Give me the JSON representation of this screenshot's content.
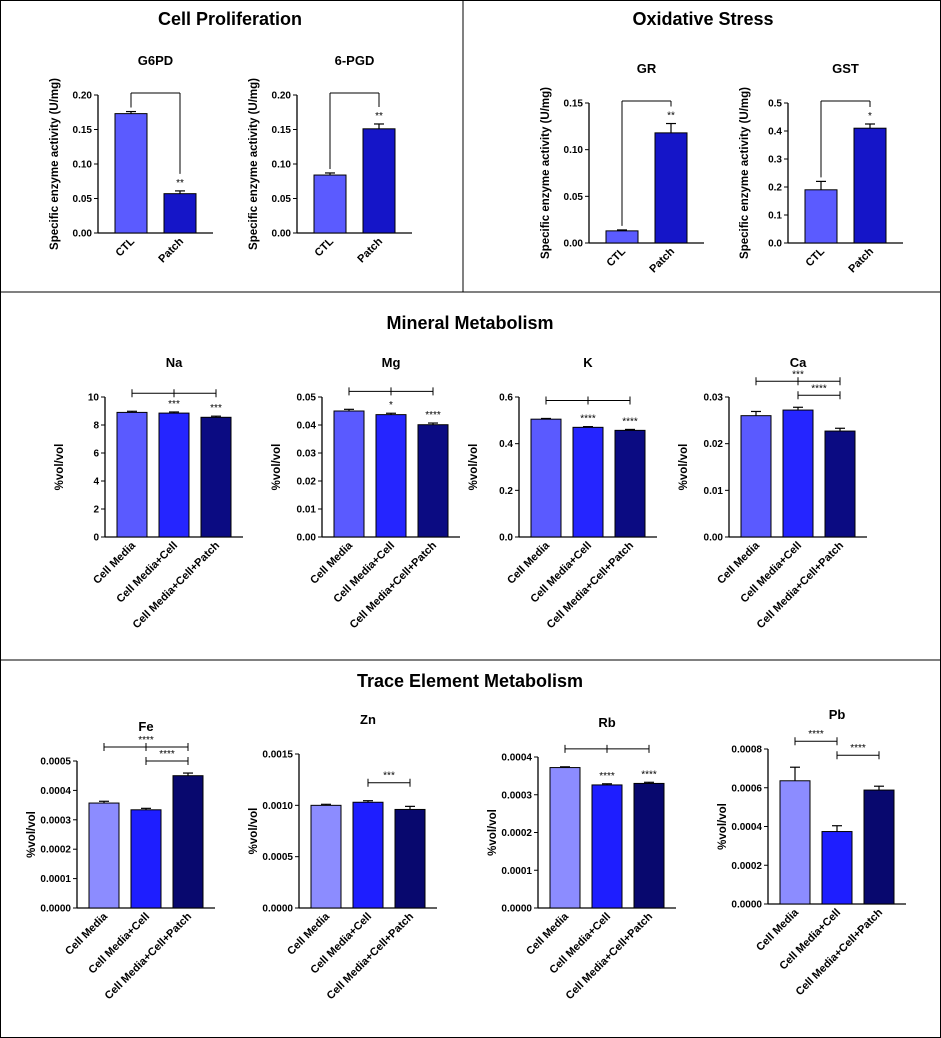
{
  "figure": {
    "sections": [
      {
        "title": "Cell Proliferation"
      },
      {
        "title": "Oxidative Stress"
      },
      {
        "title": "Mineral Metabolism"
      },
      {
        "title": "Trace Element Metabolism"
      }
    ]
  },
  "chart_data": [
    {
      "id": "g6pd",
      "type": "bar",
      "title": "G6PD",
      "ylabel": "Specific enzyme activity (U/mg)",
      "categories": [
        "CTL",
        "Patch"
      ],
      "values": [
        0.173,
        0.057
      ],
      "errors": [
        0.003,
        0.004
      ],
      "colors": [
        "#5b5bff",
        "#1515c8"
      ],
      "ylim": [
        0,
        0.2
      ],
      "ticks": [
        0,
        0.05,
        0.1,
        0.15,
        0.2
      ],
      "tick_labels": [
        "0.00",
        "0.05",
        "0.10",
        "0.15",
        "0.20"
      ],
      "bar_labels": [
        "",
        "**"
      ],
      "brackets": [
        {
          "from": 0,
          "to": 1,
          "label": ""
        }
      ]
    },
    {
      "id": "6pgd",
      "type": "bar",
      "title": "6-PGD",
      "ylabel": "Specific enzyme activity (U/mg)",
      "categories": [
        "CTL",
        "Patch"
      ],
      "values": [
        0.084,
        0.151
      ],
      "errors": [
        0.003,
        0.007
      ],
      "colors": [
        "#5b5bff",
        "#1515c8"
      ],
      "ylim": [
        0,
        0.2
      ],
      "ticks": [
        0,
        0.05,
        0.1,
        0.15,
        0.2
      ],
      "tick_labels": [
        "0.00",
        "0.05",
        "0.10",
        "0.15",
        "0.20"
      ],
      "bar_labels": [
        "",
        "**"
      ],
      "brackets": [
        {
          "from": 0,
          "to": 1,
          "label": ""
        }
      ]
    },
    {
      "id": "gr",
      "type": "bar",
      "title": "GR",
      "ylabel": "Specific enzyme activity (U/mg)",
      "categories": [
        "CTL",
        "Patch"
      ],
      "values": [
        0.013,
        0.118
      ],
      "errors": [
        0.001,
        0.01
      ],
      "colors": [
        "#5b5bff",
        "#1515c8"
      ],
      "ylim": [
        0,
        0.15
      ],
      "ticks": [
        0,
        0.05,
        0.1,
        0.15
      ],
      "tick_labels": [
        "0.00",
        "0.05",
        "0.10",
        "0.15"
      ],
      "bar_labels": [
        "",
        "**"
      ],
      "brackets": [
        {
          "from": 0,
          "to": 1,
          "label": ""
        }
      ]
    },
    {
      "id": "gst",
      "type": "bar",
      "title": "GST",
      "ylabel": "Specific enzyme activity (U/mg)",
      "categories": [
        "CTL",
        "Patch"
      ],
      "values": [
        0.19,
        0.41
      ],
      "errors": [
        0.03,
        0.015
      ],
      "colors": [
        "#5b5bff",
        "#1515c8"
      ],
      "ylim": [
        0,
        0.5
      ],
      "ticks": [
        0,
        0.1,
        0.2,
        0.3,
        0.4,
        0.5
      ],
      "tick_labels": [
        "0.0",
        "0.1",
        "0.2",
        "0.3",
        "0.4",
        "0.5"
      ],
      "bar_labels": [
        "",
        "*"
      ],
      "brackets": [
        {
          "from": 0,
          "to": 1,
          "label": ""
        }
      ]
    },
    {
      "id": "na",
      "type": "bar",
      "title": "Na",
      "ylabel": "%vol/vol",
      "categories": [
        "Cell Media",
        "Cell Media+Cell",
        "Cell Media+Cell+Patch"
      ],
      "values": [
        8.9,
        8.85,
        8.55
      ],
      "errors": [
        0.08,
        0.08,
        0.08
      ],
      "colors": [
        "#5a5aff",
        "#2525ff",
        "#0b0b82"
      ],
      "ylim": [
        0,
        10
      ],
      "ticks": [
        0,
        2,
        4,
        6,
        8,
        10
      ],
      "tick_labels": [
        "0",
        "2",
        "4",
        "6",
        "8",
        "10"
      ],
      "bar_labels": [
        "",
        "***",
        "***"
      ],
      "brackets": [
        {
          "from": 0,
          "to": 2,
          "label": ""
        }
      ]
    },
    {
      "id": "mg",
      "type": "bar",
      "title": "Mg",
      "ylabel": "%vol/vol",
      "categories": [
        "Cell Media",
        "Cell Media+Cell",
        "Cell Media+Cell+Patch"
      ],
      "values": [
        0.045,
        0.0437,
        0.0401
      ],
      "errors": [
        0.0006,
        0.0005,
        0.0006
      ],
      "colors": [
        "#5a5aff",
        "#2525ff",
        "#0b0b82"
      ],
      "ylim": [
        0,
        0.05
      ],
      "ticks": [
        0,
        0.01,
        0.02,
        0.03,
        0.04,
        0.05
      ],
      "tick_labels": [
        "0.00",
        "0.01",
        "0.02",
        "0.03",
        "0.04",
        "0.05"
      ],
      "bar_labels": [
        "",
        "*",
        "****"
      ],
      "brackets": [
        {
          "from": 0,
          "to": 2,
          "label": ""
        }
      ]
    },
    {
      "id": "k",
      "type": "bar",
      "title": "K",
      "ylabel": "%vol/vol",
      "categories": [
        "Cell Media",
        "Cell Media+Cell",
        "Cell Media+Cell+Patch"
      ],
      "values": [
        0.505,
        0.47,
        0.457
      ],
      "errors": [
        0.003,
        0.003,
        0.004
      ],
      "colors": [
        "#5a5aff",
        "#2525ff",
        "#0b0b82"
      ],
      "ylim": [
        0,
        0.6
      ],
      "ticks": [
        0,
        0.2,
        0.4,
        0.6
      ],
      "tick_labels": [
        "0.0",
        "0.2",
        "0.4",
        "0.6"
      ],
      "bar_labels": [
        "",
        "****",
        "****"
      ],
      "brackets": [
        {
          "from": 0,
          "to": 2,
          "label": ""
        }
      ]
    },
    {
      "id": "ca",
      "type": "bar",
      "title": "Ca",
      "ylabel": "%vol/vol",
      "categories": [
        "Cell Media",
        "Cell Media+Cell",
        "Cell Media+Cell+Patch"
      ],
      "values": [
        0.026,
        0.0272,
        0.0227
      ],
      "errors": [
        0.0009,
        0.0006,
        0.0006
      ],
      "colors": [
        "#5a5aff",
        "#2525ff",
        "#0b0b82"
      ],
      "ylim": [
        0,
        0.03
      ],
      "ticks": [
        0,
        0.01,
        0.02,
        0.03
      ],
      "tick_labels": [
        "0.00",
        "0.01",
        "0.02",
        "0.03"
      ],
      "bar_labels": [
        "",
        "",
        ""
      ],
      "brackets": [
        {
          "from": 0,
          "to": 2,
          "label": "***"
        },
        {
          "from": 1,
          "to": 2,
          "label": "****"
        }
      ]
    },
    {
      "id": "fe",
      "type": "bar",
      "title": "Fe",
      "ylabel": "%vol/vol",
      "categories": [
        "Cell Media",
        "Cell Media+Cell",
        "Cell Media+Cell+Patch"
      ],
      "values": [
        0.000357,
        0.000334,
        0.00045
      ],
      "errors": [
        6e-06,
        5e-06,
        9e-06
      ],
      "colors": [
        "#8c8cff",
        "#1e1eff",
        "#08086e"
      ],
      "ylim": [
        0,
        0.0005
      ],
      "ticks": [
        0,
        0.0001,
        0.0002,
        0.0003,
        0.0004,
        0.0005
      ],
      "tick_labels": [
        "0.0000",
        "0.0001",
        "0.0002",
        "0.0003",
        "0.0004",
        "0.0005"
      ],
      "bar_labels": [
        "",
        "",
        ""
      ],
      "brackets": [
        {
          "from": 0,
          "to": 2,
          "label": "****"
        },
        {
          "from": 1,
          "to": 2,
          "label": "****"
        }
      ]
    },
    {
      "id": "zn",
      "type": "bar",
      "title": "Zn",
      "ylabel": "%vol/vol",
      "categories": [
        "Cell Media",
        "Cell Media+Cell",
        "Cell Media+Cell+Patch"
      ],
      "values": [
        0.001,
        0.00103,
        0.00096
      ],
      "errors": [
        1e-05,
        1.5e-05,
        3e-05
      ],
      "colors": [
        "#8c8cff",
        "#1e1eff",
        "#08086e"
      ],
      "ylim": [
        0,
        0.0015
      ],
      "ticks": [
        0,
        0.0005,
        0.001,
        0.0015
      ],
      "tick_labels": [
        "0.0000",
        "0.0005",
        "0.0010",
        "0.0015"
      ],
      "bar_labels": [
        "",
        "",
        ""
      ],
      "brackets": [
        {
          "from": 1,
          "to": 2,
          "label": "***"
        }
      ]
    },
    {
      "id": "rb",
      "type": "bar",
      "title": "Rb",
      "ylabel": "%vol/vol",
      "categories": [
        "Cell Media",
        "Cell Media+Cell",
        "Cell Media+Cell+Patch"
      ],
      "values": [
        0.000372,
        0.000326,
        0.00033
      ],
      "errors": [
        2e-06,
        3e-06,
        3e-06
      ],
      "colors": [
        "#8c8cff",
        "#1e1eff",
        "#08086e"
      ],
      "ylim": [
        0,
        0.0004
      ],
      "ticks": [
        0,
        0.0001,
        0.0002,
        0.0003,
        0.0004
      ],
      "tick_labels": [
        "0.0000",
        "0.0001",
        "0.0002",
        "0.0003",
        "0.0004"
      ],
      "bar_labels": [
        "",
        "****",
        "****"
      ],
      "brackets": [
        {
          "from": 0,
          "to": 2,
          "label": ""
        }
      ]
    },
    {
      "id": "pb",
      "type": "bar",
      "title": "Pb",
      "ylabel": "%vol/vol",
      "categories": [
        "Cell Media",
        "Cell Media+Cell",
        "Cell Media+Cell+Patch"
      ],
      "values": [
        0.000636,
        0.000374,
        0.000588
      ],
      "errors": [
        7e-05,
        3e-05,
        2e-05
      ],
      "colors": [
        "#8c8cff",
        "#1e1eff",
        "#08086e"
      ],
      "ylim": [
        0,
        0.0008
      ],
      "ticks": [
        0,
        0.0002,
        0.0004,
        0.0006,
        0.0008
      ],
      "tick_labels": [
        "0.0000",
        "0.0002",
        "0.0004",
        "0.0006",
        "0.0008"
      ],
      "bar_labels": [
        "",
        "",
        ""
      ],
      "brackets": [
        {
          "from": 0,
          "to": 1,
          "label": "****"
        },
        {
          "from": 1,
          "to": 2,
          "label": "****"
        }
      ]
    }
  ]
}
